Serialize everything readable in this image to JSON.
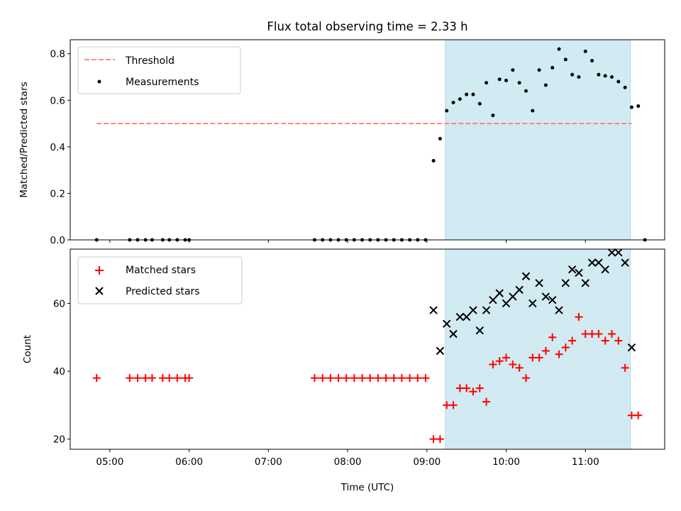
{
  "chart_data": [
    {
      "type": "scatter",
      "title": "Flux total observing time = 2.33 h",
      "xlabel": "",
      "ylabel": "Matched/Predicted stars",
      "ylim": [
        0,
        0.86
      ],
      "yticks": [
        "0.0",
        "0.2",
        "0.4",
        "0.6",
        "0.8"
      ],
      "ytick_values": [
        0,
        0.2,
        0.4,
        0.6,
        0.8
      ],
      "xlim": [
        "04:30",
        "12:00"
      ],
      "grid": false,
      "legend_position": "top-left",
      "shaded_interval": {
        "start": "09:14",
        "end": "11:34",
        "color": "#add8e6"
      },
      "threshold": {
        "name": "Threshold",
        "value": 0.5,
        "from": "04:50",
        "to": "11:35",
        "color": "#ff7f7f"
      },
      "series": [
        {
          "name": "Measurements",
          "color": "#000000",
          "marker": "dot",
          "points": [
            [
              "04:50",
              0
            ],
            [
              "05:15",
              0
            ],
            [
              "05:21",
              0
            ],
            [
              "05:27",
              0
            ],
            [
              "05:32",
              0
            ],
            [
              "05:40",
              0
            ],
            [
              "05:45",
              0
            ],
            [
              "05:51",
              0
            ],
            [
              "05:57",
              0
            ],
            [
              "06:00",
              0
            ],
            [
              "07:35",
              0
            ],
            [
              "07:41",
              0
            ],
            [
              "07:47",
              0
            ],
            [
              "07:53",
              0
            ],
            [
              "07:59",
              0
            ],
            [
              "08:05",
              0
            ],
            [
              "08:11",
              0
            ],
            [
              "08:17",
              0
            ],
            [
              "08:23",
              0
            ],
            [
              "08:29",
              0
            ],
            [
              "08:35",
              0
            ],
            [
              "08:41",
              0
            ],
            [
              "08:47",
              0
            ],
            [
              "08:53",
              0
            ],
            [
              "08:59",
              0
            ],
            [
              "09:05",
              0.34
            ],
            [
              "09:10",
              0.435
            ],
            [
              "09:15",
              0.555
            ],
            [
              "09:20",
              0.59
            ],
            [
              "09:25",
              0.605
            ],
            [
              "09:30",
              0.625
            ],
            [
              "09:35",
              0.625
            ],
            [
              "09:40",
              0.585
            ],
            [
              "09:45",
              0.675
            ],
            [
              "09:50",
              0.535
            ],
            [
              "09:55",
              0.69
            ],
            [
              "10:00",
              0.685
            ],
            [
              "10:05",
              0.73
            ],
            [
              "10:10",
              0.675
            ],
            [
              "10:15",
              0.64
            ],
            [
              "10:20",
              0.555
            ],
            [
              "10:25",
              0.73
            ],
            [
              "10:30",
              0.665
            ],
            [
              "10:35",
              0.74
            ],
            [
              "10:40",
              0.82
            ],
            [
              "10:45",
              0.775
            ],
            [
              "10:50",
              0.71
            ],
            [
              "10:55",
              0.7
            ],
            [
              "11:00",
              0.81
            ],
            [
              "11:05",
              0.77
            ],
            [
              "11:10",
              0.71
            ],
            [
              "11:15",
              0.705
            ],
            [
              "11:20",
              0.7
            ],
            [
              "11:25",
              0.68
            ],
            [
              "11:30",
              0.655
            ],
            [
              "11:35",
              0.57
            ],
            [
              "11:40",
              0.575
            ],
            [
              "11:45",
              0
            ]
          ]
        }
      ]
    },
    {
      "type": "scatter",
      "title": "",
      "xlabel": "Time (UTC)",
      "ylabel": "Count",
      "ylim": [
        17,
        76
      ],
      "yticks": [
        "20",
        "40",
        "60"
      ],
      "ytick_values": [
        20,
        40,
        60
      ],
      "xlim": [
        "04:30",
        "12:00"
      ],
      "xticks": [
        "05:00",
        "06:00",
        "07:00",
        "08:00",
        "09:00",
        "10:00",
        "11:00"
      ],
      "grid": false,
      "legend_position": "top-left",
      "shaded_interval": {
        "start": "09:14",
        "end": "11:34",
        "color": "#add8e6"
      },
      "series": [
        {
          "name": "Matched stars",
          "color": "#ff0000",
          "marker": "plus",
          "points": [
            [
              "04:50",
              38
            ],
            [
              "05:15",
              38
            ],
            [
              "05:21",
              38
            ],
            [
              "05:27",
              38
            ],
            [
              "05:32",
              38
            ],
            [
              "05:40",
              38
            ],
            [
              "05:45",
              38
            ],
            [
              "05:51",
              38
            ],
            [
              "05:57",
              38
            ],
            [
              "06:00",
              38
            ],
            [
              "07:35",
              38
            ],
            [
              "07:41",
              38
            ],
            [
              "07:47",
              38
            ],
            [
              "07:53",
              38
            ],
            [
              "07:59",
              38
            ],
            [
              "08:05",
              38
            ],
            [
              "08:11",
              38
            ],
            [
              "08:17",
              38
            ],
            [
              "08:23",
              38
            ],
            [
              "08:29",
              38
            ],
            [
              "08:35",
              38
            ],
            [
              "08:41",
              38
            ],
            [
              "08:47",
              38
            ],
            [
              "08:53",
              38
            ],
            [
              "08:59",
              38
            ],
            [
              "09:05",
              20
            ],
            [
              "09:10",
              20
            ],
            [
              "09:15",
              30
            ],
            [
              "09:20",
              30
            ],
            [
              "09:25",
              35
            ],
            [
              "09:30",
              35
            ],
            [
              "09:35",
              34
            ],
            [
              "09:40",
              35
            ],
            [
              "09:45",
              31
            ],
            [
              "09:50",
              42
            ],
            [
              "09:55",
              43
            ],
            [
              "10:00",
              44
            ],
            [
              "10:05",
              42
            ],
            [
              "10:10",
              41
            ],
            [
              "10:15",
              38
            ],
            [
              "10:20",
              44
            ],
            [
              "10:25",
              44
            ],
            [
              "10:30",
              46
            ],
            [
              "10:35",
              50
            ],
            [
              "10:40",
              45
            ],
            [
              "10:45",
              47
            ],
            [
              "10:50",
              49
            ],
            [
              "10:55",
              56
            ],
            [
              "11:00",
              51
            ],
            [
              "11:05",
              51
            ],
            [
              "11:10",
              51
            ],
            [
              "11:15",
              49
            ],
            [
              "11:20",
              51
            ],
            [
              "11:25",
              49
            ],
            [
              "11:30",
              41
            ],
            [
              "11:35",
              27
            ],
            [
              "11:40",
              27
            ]
          ]
        },
        {
          "name": "Predicted stars",
          "color": "#000000",
          "marker": "x",
          "points": [
            [
              "09:05",
              58
            ],
            [
              "09:10",
              46
            ],
            [
              "09:15",
              54
            ],
            [
              "09:20",
              51
            ],
            [
              "09:25",
              56
            ],
            [
              "09:30",
              56
            ],
            [
              "09:35",
              58
            ],
            [
              "09:40",
              52
            ],
            [
              "09:45",
              58
            ],
            [
              "09:50",
              61
            ],
            [
              "09:55",
              63
            ],
            [
              "10:00",
              60
            ],
            [
              "10:05",
              62
            ],
            [
              "10:10",
              64
            ],
            [
              "10:15",
              68
            ],
            [
              "10:20",
              60
            ],
            [
              "10:25",
              66
            ],
            [
              "10:30",
              62
            ],
            [
              "10:35",
              61
            ],
            [
              "10:40",
              58
            ],
            [
              "10:45",
              66
            ],
            [
              "10:50",
              70
            ],
            [
              "10:55",
              69
            ],
            [
              "11:00",
              66
            ],
            [
              "11:05",
              72
            ],
            [
              "11:10",
              72
            ],
            [
              "11:15",
              70
            ],
            [
              "11:20",
              75
            ],
            [
              "11:25",
              75
            ],
            [
              "11:30",
              72
            ],
            [
              "11:35",
              47
            ]
          ]
        }
      ]
    }
  ]
}
